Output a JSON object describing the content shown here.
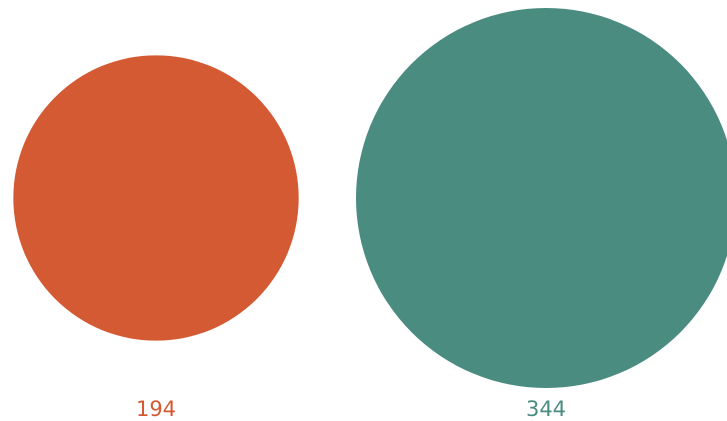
{
  "chart_data": {
    "type": "proportional-circles",
    "values": [
      194,
      344
    ],
    "colors": [
      "#d35a33",
      "#4a8c80"
    ]
  }
}
